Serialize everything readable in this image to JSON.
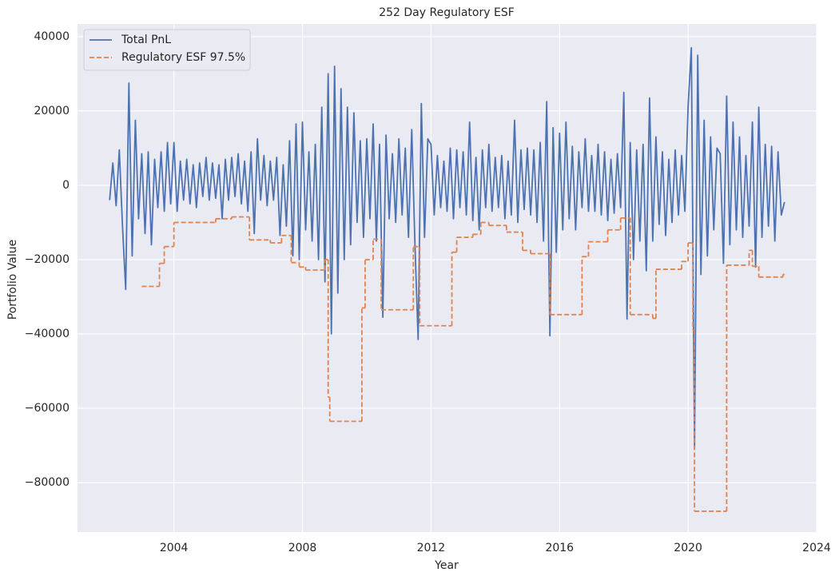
{
  "chart_data": {
    "type": "line",
    "title": "252 Day Regulatory ESF",
    "x_label": "Year",
    "y_label": "Portfolio Value",
    "xlim": [
      2001.0,
      2024.0
    ],
    "xticks": [
      2004,
      2008,
      2012,
      2016,
      2020,
      2024
    ],
    "ylim": [
      -93300,
      43400
    ],
    "yticks": [
      {
        "value": -80000,
        "label": "−80000"
      },
      {
        "value": -60000,
        "label": "−60000"
      },
      {
        "value": -40000,
        "label": "−40000"
      },
      {
        "value": -20000,
        "label": "−20000"
      },
      0,
      20000,
      40000
    ],
    "grid": true,
    "legend": "upper left",
    "series": [
      {
        "name": "Total PnL",
        "color": "#4c72b0",
        "style": "solid",
        "x": [
          2002.0,
          2002.1,
          2002.2,
          2002.3,
          2002.4,
          2002.5,
          2002.6,
          2002.7,
          2002.8,
          2002.9,
          2003.0,
          2003.1,
          2003.2,
          2003.3,
          2003.4,
          2003.5,
          2003.6,
          2003.7,
          2003.8,
          2003.9,
          2004.0,
          2004.1,
          2004.2,
          2004.3,
          2004.4,
          2004.5,
          2004.6,
          2004.7,
          2004.8,
          2004.9,
          2005.0,
          2005.1,
          2005.2,
          2005.3,
          2005.4,
          2005.5,
          2005.6,
          2005.7,
          2005.8,
          2005.9,
          2006.0,
          2006.1,
          2006.2,
          2006.3,
          2006.4,
          2006.5,
          2006.6,
          2006.7,
          2006.8,
          2006.9,
          2007.0,
          2007.1,
          2007.2,
          2007.3,
          2007.4,
          2007.5,
          2007.6,
          2007.7,
          2007.8,
          2007.9,
          2008.0,
          2008.1,
          2008.2,
          2008.3,
          2008.4,
          2008.5,
          2008.6,
          2008.7,
          2008.8,
          2008.9,
          2009.0,
          2009.1,
          2009.2,
          2009.3,
          2009.4,
          2009.5,
          2009.6,
          2009.7,
          2009.8,
          2009.9,
          2010.0,
          2010.1,
          2010.2,
          2010.3,
          2010.4,
          2010.5,
          2010.6,
          2010.7,
          2010.8,
          2010.9,
          2011.0,
          2011.1,
          2011.2,
          2011.3,
          2011.4,
          2011.5,
          2011.6,
          2011.7,
          2011.8,
          2011.9,
          2012.0,
          2012.1,
          2012.2,
          2012.3,
          2012.4,
          2012.5,
          2012.6,
          2012.7,
          2012.8,
          2012.9,
          2013.0,
          2013.1,
          2013.2,
          2013.3,
          2013.4,
          2013.5,
          2013.6,
          2013.7,
          2013.8,
          2013.9,
          2014.0,
          2014.1,
          2014.2,
          2014.3,
          2014.4,
          2014.5,
          2014.6,
          2014.7,
          2014.8,
          2014.9,
          2015.0,
          2015.1,
          2015.2,
          2015.3,
          2015.4,
          2015.5,
          2015.6,
          2015.7,
          2015.8,
          2015.9,
          2016.0,
          2016.1,
          2016.2,
          2016.3,
          2016.4,
          2016.5,
          2016.6,
          2016.7,
          2016.8,
          2016.9,
          2017.0,
          2017.1,
          2017.2,
          2017.3,
          2017.4,
          2017.5,
          2017.6,
          2017.7,
          2017.8,
          2017.9,
          2018.0,
          2018.1,
          2018.2,
          2018.3,
          2018.4,
          2018.5,
          2018.6,
          2018.7,
          2018.8,
          2018.9,
          2019.0,
          2019.1,
          2019.2,
          2019.3,
          2019.4,
          2019.5,
          2019.6,
          2019.7,
          2019.8,
          2019.9,
          2020.0,
          2020.1,
          2020.2,
          2020.3,
          2020.4,
          2020.5,
          2020.6,
          2020.7,
          2020.8,
          2020.9,
          2021.0,
          2021.1,
          2021.2,
          2021.3,
          2021.4,
          2021.5,
          2021.6,
          2021.7,
          2021.8,
          2021.9,
          2022.0,
          2022.1,
          2022.2,
          2022.3,
          2022.4,
          2022.5,
          2022.6,
          2022.7,
          2022.8,
          2022.9,
          2023.0
        ],
        "values": [
          -4000,
          6000,
          -5500,
          9500,
          -11000,
          -28000,
          27500,
          -19000,
          17500,
          -9000,
          8500,
          -13000,
          9000,
          -16000,
          7000,
          -6000,
          9000,
          -7000,
          11500,
          -5000,
          11500,
          -7000,
          6500,
          -4000,
          7000,
          -5000,
          5500,
          -6000,
          6000,
          -3000,
          7500,
          -4000,
          6000,
          -3500,
          5500,
          -9000,
          7000,
          -4000,
          7500,
          -3000,
          8500,
          -5000,
          6500,
          -7000,
          9000,
          -13000,
          12500,
          -4000,
          8000,
          -5500,
          6500,
          -4000,
          7500,
          -13500,
          5500,
          -11000,
          12000,
          -19000,
          16500,
          -20000,
          17000,
          -12000,
          9000,
          -15000,
          11000,
          -20000,
          21000,
          -26000,
          30000,
          -40000,
          32000,
          -29000,
          26000,
          -20000,
          21000,
          -16000,
          19500,
          -10000,
          12000,
          -14000,
          12500,
          -9000,
          16500,
          -15000,
          11000,
          -35500,
          13500,
          -9000,
          8500,
          -10000,
          12500,
          -8000,
          10000,
          -14000,
          15000,
          -16000,
          -41500,
          22000,
          -14000,
          12500,
          11000,
          -8000,
          8000,
          -6000,
          6500,
          -7000,
          10000,
          -9000,
          9500,
          -6000,
          9000,
          -8000,
          17000,
          -9500,
          7500,
          -12000,
          9500,
          -6000,
          11000,
          -7000,
          7500,
          -6000,
          8000,
          -9000,
          6500,
          -8000,
          17500,
          -10000,
          9500,
          -6500,
          10000,
          -8000,
          9500,
          -10000,
          11500,
          -15000,
          22500,
          -40500,
          15500,
          -18000,
          14000,
          -12000,
          17000,
          -9000,
          10500,
          -12000,
          9000,
          -6000,
          12500,
          -7000,
          8000,
          -7000,
          11000,
          -8000,
          9000,
          -9500,
          7000,
          -7500,
          8500,
          -6000,
          25000,
          -36000,
          11500,
          -20000,
          9500,
          -15000,
          11000,
          -23000,
          23500,
          -15000,
          13000,
          -10500,
          9000,
          -13500,
          7000,
          -10000,
          9500,
          -8000,
          8000,
          -7000,
          21000,
          37000,
          -71000,
          35000,
          -24000,
          17500,
          -19000,
          13000,
          -12000,
          10000,
          8500,
          -21000,
          24000,
          -16000,
          17000,
          -12000,
          13000,
          -14000,
          8000,
          -11000,
          17000,
          -22000,
          21000,
          -14000,
          11000,
          -11000,
          10500,
          -15000,
          9000,
          -8000,
          -4500
        ]
      },
      {
        "name": "Regulatory ESF 97.5%",
        "color": "#dd8452",
        "style": "dashed",
        "drawstyle": "steps-post",
        "x": [
          2003.0,
          2003.55,
          2003.7,
          2004.0,
          2005.3,
          2005.8,
          2006.35,
          2007.0,
          2007.35,
          2007.65,
          2007.9,
          2008.1,
          2008.7,
          2008.8,
          2008.85,
          2009.85,
          2009.95,
          2010.2,
          2010.45,
          2011.45,
          2011.65,
          2012.65,
          2012.8,
          2013.3,
          2013.55,
          2013.8,
          2014.35,
          2014.85,
          2015.1,
          2015.7,
          2016.7,
          2016.9,
          2017.5,
          2017.9,
          2018.2,
          2018.9,
          2019.0,
          2019.8,
          2020.0,
          2020.15,
          2020.2,
          2021.2,
          2021.9,
          2022.0,
          2022.2,
          2022.95,
          2023.0
        ],
        "values": [
          -27200,
          -21000,
          -16500,
          -10000,
          -9000,
          -8500,
          -14700,
          -15500,
          -13500,
          -20800,
          -22000,
          -22800,
          -20000,
          -57000,
          -63500,
          -33000,
          -20000,
          -14500,
          -33500,
          -16500,
          -37800,
          -18000,
          -14000,
          -13200,
          -10000,
          -10800,
          -12600,
          -17500,
          -18400,
          -34800,
          -19200,
          -15200,
          -12000,
          -8800,
          -34800,
          -35800,
          -22600,
          -20500,
          -15500,
          -39000,
          -87700,
          -21500,
          -17500,
          -21800,
          -24700,
          -24000,
          -24000
        ]
      }
    ]
  }
}
